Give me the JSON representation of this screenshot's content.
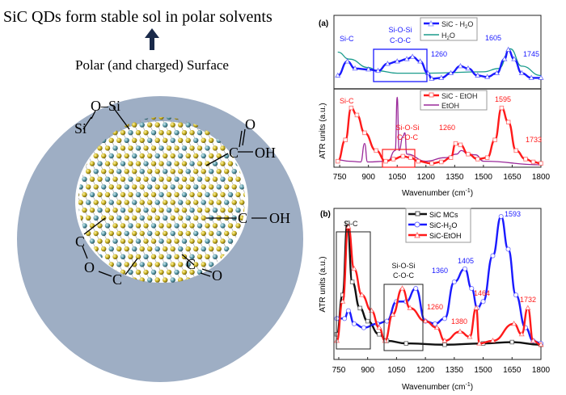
{
  "diagram": {
    "title": "SiC QDs form stable sol in polar solvents",
    "subtitle": "Polar (and charged) Surface",
    "arrow_icon": "up-arrow-icon",
    "shell_color": "#9eaec4",
    "labels": {
      "o_si_top": "O–Si",
      "si_left": "Si",
      "o_top_right": "O",
      "c_top_right": "C",
      "oh_top_right": "OH",
      "c_right": "C",
      "oh_right": "OH",
      "c_left": "C",
      "o_left": "O",
      "c_bottom": "C",
      "c_bottom_right": "C",
      "o_bottom_right": "O"
    }
  },
  "chart_data": [
    {
      "panel": "(a)",
      "type": "line",
      "ylabel": "ATR units (a.u.)",
      "xlabel": "Wavenumber (cm-1)",
      "xlabel_main": "Wavenumber (cm",
      "xlabel_sup": "-1",
      "xlabel_end": ")",
      "xlim": [
        720,
        1800
      ],
      "xticks": [
        "750",
        "900",
        "1050",
        "1200",
        "1350",
        "1500",
        "1650",
        "1800"
      ],
      "subplots": [
        {
          "legend": "top-center",
          "series": [
            {
              "name": "SiC - H2O",
              "name_main": "SiC - H",
              "name_sub": "2",
              "name_end": "O",
              "color": "#1a1aff",
              "marker": "triangle",
              "x": [
                740,
                790,
                830,
                900,
                950,
                1000,
                1050,
                1100,
                1130,
                1170,
                1210,
                1230,
                1280,
                1330,
                1380,
                1420,
                1470,
                1520,
                1570,
                1610,
                1630,
                1660,
                1700,
                1750,
                1800
              ],
              "y": [
                0.25,
                0.55,
                0.4,
                0.38,
                0.35,
                0.5,
                0.55,
                0.6,
                0.65,
                0.55,
                0.3,
                0.18,
                0.2,
                0.3,
                0.45,
                0.4,
                0.25,
                0.22,
                0.3,
                0.6,
                0.8,
                0.6,
                0.3,
                0.2,
                0.2
              ]
            },
            {
              "name": "H2O",
              "name_main": "H",
              "name_sub": "2",
              "name_end": "O",
              "color": "#1a9c8c",
              "marker": "none",
              "x": [
                740,
                800,
                900,
                950,
                1050,
                1200,
                1500,
                1580,
                1640,
                1700,
                1800
              ],
              "y": [
                0.75,
                0.6,
                0.42,
                0.35,
                0.3,
                0.3,
                0.33,
                0.4,
                0.82,
                0.45,
                0.25
              ]
            }
          ],
          "annotations": [
            {
              "text": "Si-C",
              "color": "#1a1aff"
            },
            {
              "text": "Si-O-Si",
              "color": "#1a1aff"
            },
            {
              "text": "C-O-C",
              "color": "#1a1aff"
            },
            {
              "text": "1260",
              "color": "#1a1aff"
            },
            {
              "text": "1605",
              "color": "#1a1aff"
            },
            {
              "text": "1745",
              "color": "#1a1aff"
            }
          ]
        },
        {
          "legend": "top-center",
          "series": [
            {
              "name": "SiC - EtOH",
              "color": "#ff1a1a",
              "marker": "square",
              "x": [
                740,
                780,
                810,
                840,
                880,
                940,
                990,
                1030,
                1080,
                1120,
                1160,
                1230,
                1280,
                1330,
                1355,
                1380,
                1420,
                1470,
                1520,
                1560,
                1595,
                1630,
                1670,
                1720,
                1760,
                1800
              ],
              "y": [
                0.05,
                0.35,
                0.8,
                0.7,
                0.45,
                0.2,
                0.05,
                0.08,
                0.12,
                0.1,
                0.05,
                0.02,
                0.04,
                0.1,
                0.3,
                0.28,
                0.15,
                0.08,
                0.1,
                0.35,
                0.8,
                0.6,
                0.2,
                0.08,
                0.04,
                0.02
              ]
            },
            {
              "name": "EtOH",
              "color": "#9b2a9b",
              "marker": "none",
              "x": [
                740,
                800,
                860,
                880,
                895,
                1000,
                1040,
                1050,
                1060,
                1080,
                1090,
                1100,
                1200,
                1300,
                1360,
                1385,
                1420,
                1460,
                1500,
                1800
              ],
              "y": [
                0.07,
                0.05,
                0.04,
                0.3,
                0.04,
                0.05,
                0.2,
                0.95,
                0.2,
                0.4,
                0.45,
                0.15,
                0.05,
                0.1,
                0.15,
                0.2,
                0.15,
                0.14,
                0.05,
                0.0
              ]
            }
          ],
          "annotations": [
            {
              "text": "Si-C",
              "color": "#ff1a1a"
            },
            {
              "text": "Si-O-Si",
              "color": "#ff1a1a"
            },
            {
              "text": "C-O-C",
              "color": "#ff1a1a"
            },
            {
              "text": "1260",
              "color": "#ff1a1a"
            },
            {
              "text": "1595",
              "color": "#ff1a1a"
            },
            {
              "text": "1733",
              "color": "#ff1a1a"
            }
          ]
        }
      ]
    },
    {
      "panel": "(b)",
      "type": "line",
      "ylabel": "ATR units (a.u.)",
      "xlabel": "Wavenumber (cm-1)",
      "xlabel_main": "Wavenumber (cm",
      "xlabel_sup": "-1",
      "xlabel_end": ")",
      "xlim": [
        725,
        1800
      ],
      "xticks": [
        "750",
        "900",
        "1050",
        "1200",
        "1350",
        "1500",
        "1650",
        "1800"
      ],
      "legend": "top-center",
      "series": [
        {
          "name": "SiC MCs",
          "color": "#111111",
          "marker": "square",
          "x": [
            740,
            770,
            795,
            820,
            860,
            900,
            960,
            1000,
            1100,
            1300,
            1500,
            1650,
            1800
          ],
          "y": [
            0.1,
            0.4,
            0.95,
            0.5,
            0.3,
            0.2,
            0.1,
            0.05,
            0.03,
            0.02,
            0.03,
            0.04,
            0.02
          ]
        },
        {
          "name": "SiC-H2O",
          "name_main": "SiC-H",
          "name_sub": "2",
          "name_end": "O",
          "color": "#1a1aff",
          "marker": "circle",
          "x": [
            740,
            780,
            800,
            830,
            880,
            950,
            1000,
            1050,
            1100,
            1150,
            1200,
            1250,
            1300,
            1350,
            1405,
            1440,
            1470,
            1500,
            1550,
            1593,
            1630,
            1670,
            1720,
            1760,
            1800
          ],
          "y": [
            0.22,
            0.22,
            0.28,
            0.18,
            0.15,
            0.18,
            0.2,
            0.35,
            0.35,
            0.45,
            0.2,
            0.18,
            0.22,
            0.5,
            0.6,
            0.45,
            0.3,
            0.35,
            0.7,
            1.0,
            0.75,
            0.4,
            0.15,
            0.05,
            0.03
          ]
        },
        {
          "name": "SiC-EtOH",
          "color": "#ff1a1a",
          "marker": "triangle",
          "x": [
            740,
            770,
            800,
            830,
            870,
            920,
            960,
            990,
            1030,
            1080,
            1120,
            1200,
            1260,
            1300,
            1380,
            1430,
            1464,
            1480,
            1550,
            1660,
            1700,
            1732,
            1760,
            1800
          ],
          "y": [
            0.05,
            0.35,
            0.92,
            0.6,
            0.4,
            0.28,
            0.15,
            0.05,
            0.25,
            0.45,
            0.3,
            0.2,
            0.15,
            0.05,
            0.12,
            0.08,
            0.3,
            0.03,
            0.05,
            0.18,
            0.1,
            0.3,
            0.05,
            0.02
          ]
        }
      ],
      "annotations": [
        {
          "text": "Si-C",
          "color": "#111111"
        },
        {
          "text": "Si-O-Si",
          "color": "#111111"
        },
        {
          "text": "C-O-C",
          "color": "#111111"
        },
        {
          "text": "1360",
          "color": "#1a1aff"
        },
        {
          "text": "1405",
          "color": "#1a1aff"
        },
        {
          "text": "1593",
          "color": "#1a1aff"
        },
        {
          "text": "1260",
          "color": "#ff1a1a"
        },
        {
          "text": "1380",
          "color": "#ff1a1a"
        },
        {
          "text": "1464",
          "color": "#ff1a1a"
        },
        {
          "text": "1732",
          "color": "#ff1a1a"
        }
      ]
    }
  ]
}
